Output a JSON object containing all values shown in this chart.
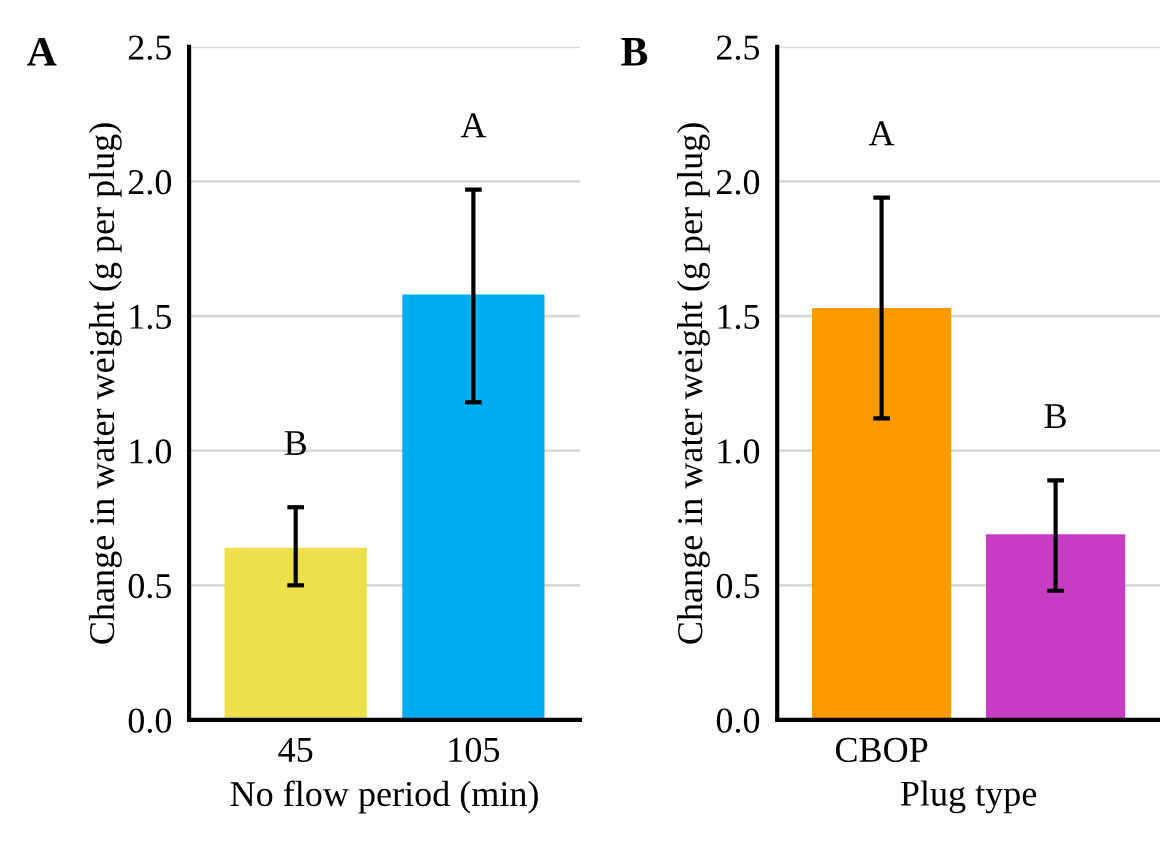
{
  "chart_data": [
    {
      "type": "bar",
      "title": "A",
      "xlabel": "No flow period (min)",
      "ylabel": "Change in water weight (g per plug)",
      "categories": [
        "45",
        "105"
      ],
      "values": [
        0.64,
        1.58
      ],
      "errors": [
        [
          0.5,
          0.79
        ],
        [
          1.18,
          1.97
        ]
      ],
      "colors": [
        "#ede04a",
        "#00aeef"
      ],
      "ylim": [
        0,
        2.5
      ],
      "yticks": [
        {
          "value": 0,
          "label": "0.0"
        },
        0.5,
        {
          "value": 1,
          "label": "1.0"
        },
        1.5,
        {
          "value": 2,
          "label": "2.0"
        },
        2.5
      ],
      "grid": "y",
      "annotations": [
        "B",
        "A"
      ]
    },
    {
      "type": "bar",
      "title": "B",
      "xlabel": "Plug type",
      "ylabel": "Change in water weight (g per plug)",
      "categories": [
        "CBOP",
        null
      ],
      "values": [
        1.53,
        0.69
      ],
      "errors": [
        [
          1.12,
          1.94
        ],
        [
          0.48,
          0.89
        ]
      ],
      "colors": [
        "#ff9900",
        "#c83cc4"
      ],
      "ylim": [
        0,
        2.5
      ],
      "yticks": [
        {
          "value": 0,
          "label": "0.0"
        },
        0.5,
        {
          "value": 1,
          "label": "1.0"
        },
        1.5,
        {
          "value": 2,
          "label": "2.0"
        },
        2.5
      ],
      "grid": "y",
      "annotations": [
        "A",
        "B"
      ]
    }
  ]
}
